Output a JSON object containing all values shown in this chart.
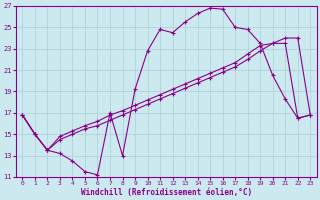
{
  "title": "",
  "xlabel": "Windchill (Refroidissement éolien,°C)",
  "xlim": [
    -0.5,
    23.5
  ],
  "ylim": [
    11,
    27
  ],
  "xticks": [
    0,
    1,
    2,
    3,
    4,
    5,
    6,
    7,
    8,
    9,
    10,
    11,
    12,
    13,
    14,
    15,
    16,
    17,
    18,
    19,
    20,
    21,
    22,
    23
  ],
  "yticks": [
    11,
    13,
    15,
    17,
    19,
    21,
    23,
    25,
    27
  ],
  "background_color": "#cce9ef",
  "grid_color": "#aad0d8",
  "line_color": "#880088",
  "line1_x": [
    0,
    1,
    2,
    3,
    4,
    5,
    6,
    7,
    8,
    9,
    10,
    11,
    12,
    13,
    14,
    15,
    16,
    17,
    18,
    19,
    20,
    21,
    22,
    23
  ],
  "line1_y": [
    16.8,
    15.0,
    13.5,
    13.2,
    12.5,
    11.5,
    11.2,
    17.0,
    13.0,
    19.2,
    22.8,
    24.8,
    24.5,
    25.5,
    26.3,
    26.8,
    26.7,
    25.0,
    24.8,
    23.5,
    20.5,
    18.3,
    16.5,
    16.8
  ],
  "line2_x": [
    0,
    1,
    2,
    3,
    4,
    5,
    6,
    7,
    8,
    9,
    10,
    11,
    12,
    13,
    14,
    15,
    16,
    17,
    18,
    19,
    20,
    21,
    22,
    23
  ],
  "line2_y": [
    16.8,
    15.0,
    13.5,
    14.5,
    15.0,
    15.5,
    15.8,
    16.3,
    16.8,
    17.3,
    17.8,
    18.3,
    18.8,
    19.3,
    19.8,
    20.3,
    20.8,
    21.3,
    22.0,
    22.8,
    23.5,
    24.0,
    24.0,
    16.8
  ],
  "line3_x": [
    0,
    1,
    2,
    3,
    4,
    5,
    6,
    7,
    8,
    9,
    10,
    11,
    12,
    13,
    14,
    15,
    16,
    17,
    18,
    19,
    20,
    21,
    22,
    23
  ],
  "line3_y": [
    16.8,
    15.0,
    13.5,
    14.8,
    15.3,
    15.8,
    16.2,
    16.8,
    17.2,
    17.7,
    18.2,
    18.7,
    19.2,
    19.7,
    20.2,
    20.7,
    21.2,
    21.7,
    22.5,
    23.3,
    23.5,
    23.5,
    16.5,
    16.8
  ]
}
